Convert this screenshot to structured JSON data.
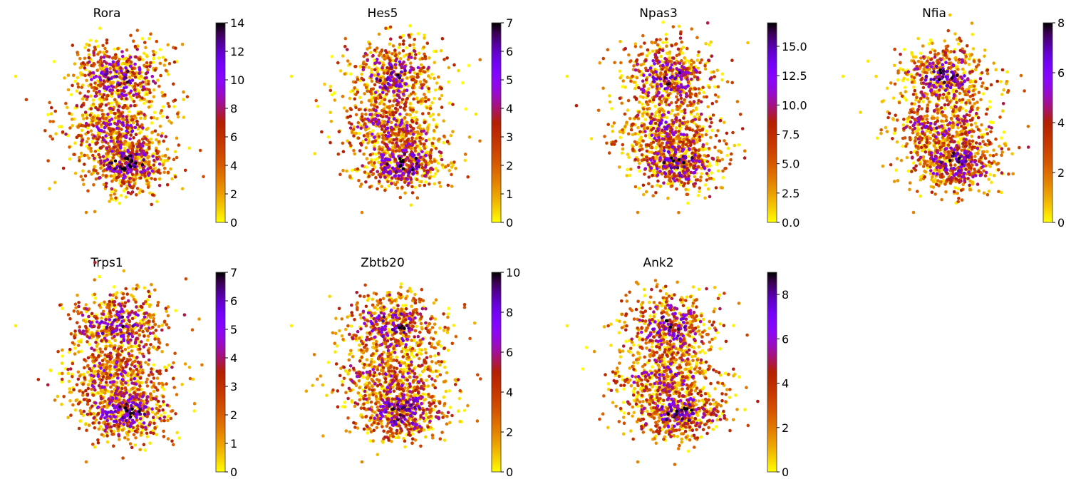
{
  "chart_data": [
    {
      "type": "scatter",
      "title": "Rora",
      "colorbar": {
        "colormap": "gnuplot_r",
        "range": [
          0,
          14
        ],
        "ticks": [
          "0",
          "2",
          "4",
          "6",
          "8",
          "10",
          "12",
          "14"
        ],
        "tick_values": [
          0,
          2,
          4,
          6,
          8,
          10,
          12,
          14
        ]
      },
      "axes_visible": false,
      "grid": false
    },
    {
      "type": "scatter",
      "title": "Hes5",
      "colorbar": {
        "colormap": "gnuplot_r",
        "range": [
          0,
          7
        ],
        "ticks": [
          "0",
          "1",
          "2",
          "3",
          "4",
          "5",
          "6",
          "7"
        ],
        "tick_values": [
          0,
          1,
          2,
          3,
          4,
          5,
          6,
          7
        ]
      },
      "axes_visible": false,
      "grid": false
    },
    {
      "type": "scatter",
      "title": "Npas3",
      "colorbar": {
        "colormap": "gnuplot_r",
        "range": [
          0,
          17
        ],
        "ticks": [
          "0.0",
          "2.5",
          "5.0",
          "7.5",
          "10.0",
          "12.5",
          "15.0"
        ],
        "tick_values": [
          0,
          2.5,
          5,
          7.5,
          10,
          12.5,
          15
        ]
      },
      "axes_visible": false,
      "grid": false
    },
    {
      "type": "scatter",
      "title": "Nfia",
      "colorbar": {
        "colormap": "gnuplot_r",
        "range": [
          0,
          8
        ],
        "ticks": [
          "0",
          "2",
          "4",
          "6",
          "8"
        ],
        "tick_values": [
          0,
          2,
          4,
          6,
          8
        ]
      },
      "axes_visible": false,
      "grid": false
    },
    {
      "type": "scatter",
      "title": "Trps1",
      "colorbar": {
        "colormap": "gnuplot_r",
        "range": [
          0,
          7
        ],
        "ticks": [
          "0",
          "1",
          "2",
          "3",
          "4",
          "5",
          "6",
          "7"
        ],
        "tick_values": [
          0,
          1,
          2,
          3,
          4,
          5,
          6,
          7
        ]
      },
      "axes_visible": false,
      "grid": false
    },
    {
      "type": "scatter",
      "title": "Zbtb20",
      "colorbar": {
        "colormap": "gnuplot_r",
        "range": [
          0,
          10
        ],
        "ticks": [
          "0",
          "2",
          "4",
          "6",
          "8",
          "10"
        ],
        "tick_values": [
          0,
          2,
          4,
          6,
          8,
          10
        ]
      },
      "axes_visible": false,
      "grid": false
    },
    {
      "type": "scatter",
      "title": "Ank2",
      "colorbar": {
        "colormap": "gnuplot_r",
        "range": [
          0,
          9
        ],
        "ticks": [
          "0",
          "2",
          "4",
          "6",
          "8"
        ],
        "tick_values": [
          0,
          2,
          4,
          6,
          8
        ]
      },
      "axes_visible": false,
      "grid": false
    }
  ]
}
